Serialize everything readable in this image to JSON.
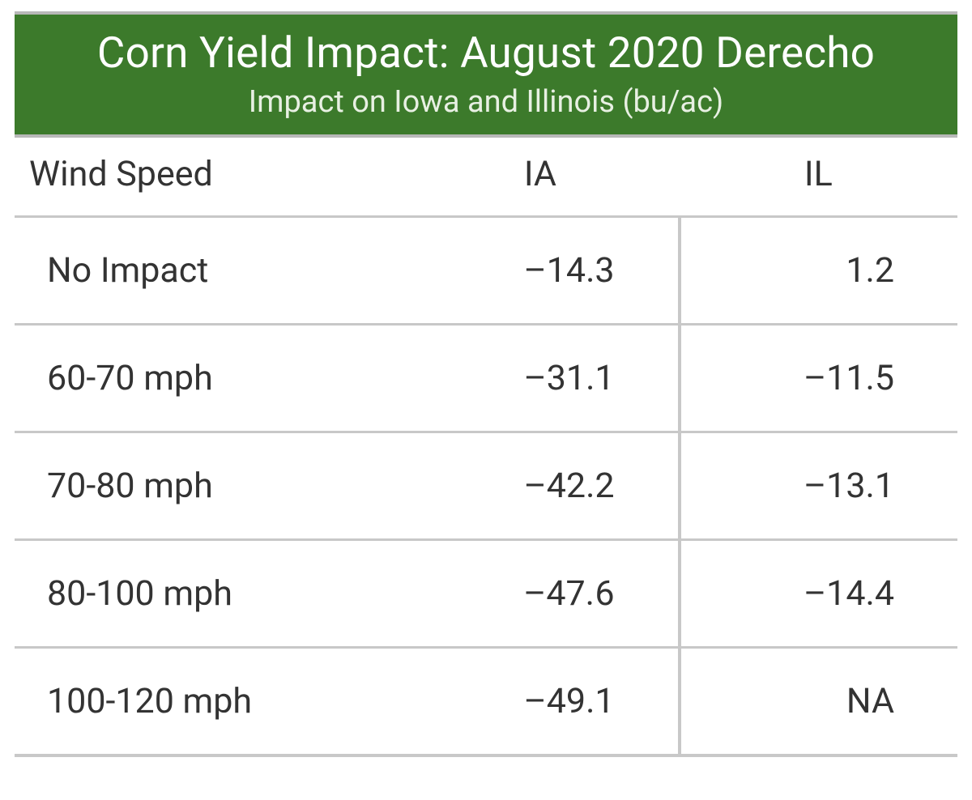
{
  "style": {
    "header_bg": "#3c7a2b",
    "outer_rule_color": "#b8b8b8",
    "rule_color": "#c8c8c8",
    "text_color": "#333333",
    "title_fontsize_pt": 40,
    "subtitle_fontsize_pt": 28,
    "header_fontsize_pt": 32,
    "cell_fontsize_pt": 32,
    "minus_glyph": "–"
  },
  "table": {
    "type": "table",
    "title": "Corn Yield Impact: August 2020 Derecho",
    "subtitle": "Impact on Iowa and Illinois (bu/ac)",
    "columns": [
      {
        "key": "wind",
        "label": "Wind Speed",
        "align": "left"
      },
      {
        "key": "ia",
        "label": "IA",
        "align": "right"
      },
      {
        "key": "il",
        "label": "IL",
        "align": "right"
      }
    ],
    "rows": [
      {
        "wind": "No Impact",
        "ia": "–14.3",
        "il": "1.2"
      },
      {
        "wind": "60-70 mph",
        "ia": "–31.1",
        "il": "–11.5"
      },
      {
        "wind": "70-80 mph",
        "ia": "–42.2",
        "il": "–13.1"
      },
      {
        "wind": "80-100 mph",
        "ia": "–47.6",
        "il": "–14.4"
      },
      {
        "wind": "100-120 mph",
        "ia": "–49.1",
        "il": "NA"
      }
    ]
  }
}
